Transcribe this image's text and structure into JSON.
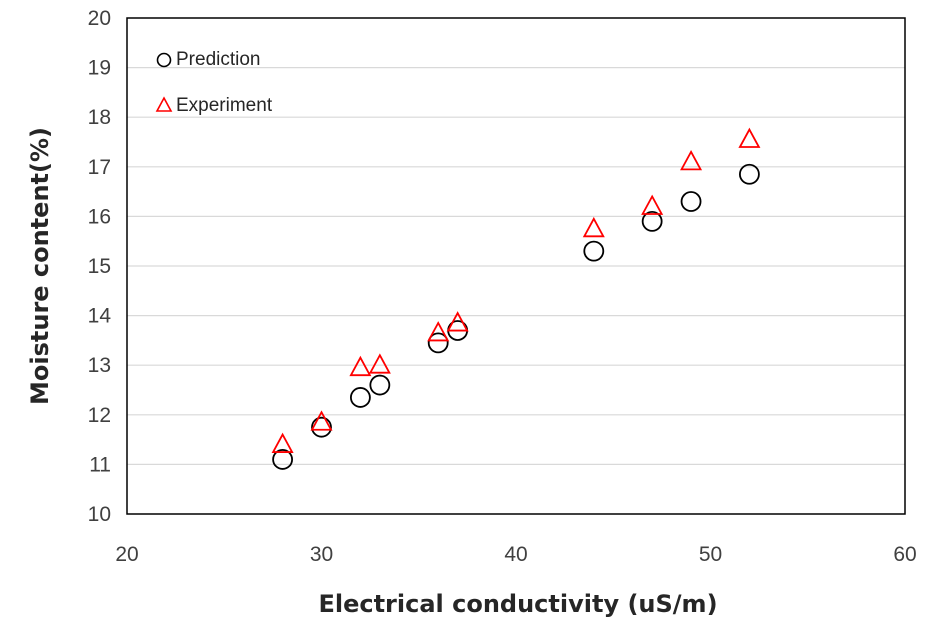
{
  "chart_data": {
    "type": "scatter",
    "title": "",
    "xlabel": "Electrical conductivity (uS/m)",
    "ylabel": "Moisture content(%)",
    "xlim": [
      20,
      60
    ],
    "ylim": [
      10,
      20
    ],
    "xticks": [
      20,
      30,
      40,
      50,
      60
    ],
    "yticks": [
      10,
      11,
      12,
      13,
      14,
      15,
      16,
      17,
      18,
      19,
      20
    ],
    "grid": "horizontal",
    "legend_position": "top-left",
    "series": [
      {
        "name": "Prediction",
        "marker": "circle",
        "color": "#000000",
        "points": [
          {
            "x": 28,
            "y": 11.1
          },
          {
            "x": 30,
            "y": 11.75
          },
          {
            "x": 32,
            "y": 12.35
          },
          {
            "x": 33,
            "y": 12.6
          },
          {
            "x": 36,
            "y": 13.45
          },
          {
            "x": 37,
            "y": 13.7
          },
          {
            "x": 44,
            "y": 15.3
          },
          {
            "x": 47,
            "y": 15.9
          },
          {
            "x": 49,
            "y": 16.3
          },
          {
            "x": 52,
            "y": 16.85
          }
        ]
      },
      {
        "name": "Experiment",
        "marker": "triangle",
        "color": "#ff0000",
        "points": [
          {
            "x": 28,
            "y": 11.4
          },
          {
            "x": 30,
            "y": 11.85
          },
          {
            "x": 32,
            "y": 12.95
          },
          {
            "x": 33,
            "y": 13.0
          },
          {
            "x": 36,
            "y": 13.65
          },
          {
            "x": 37,
            "y": 13.85
          },
          {
            "x": 44,
            "y": 15.75
          },
          {
            "x": 47,
            "y": 16.2
          },
          {
            "x": 49,
            "y": 17.1
          },
          {
            "x": 52,
            "y": 17.55
          }
        ]
      }
    ]
  },
  "colors": {
    "plot_border": "#000000",
    "gridline": "#d9d9d9"
  }
}
